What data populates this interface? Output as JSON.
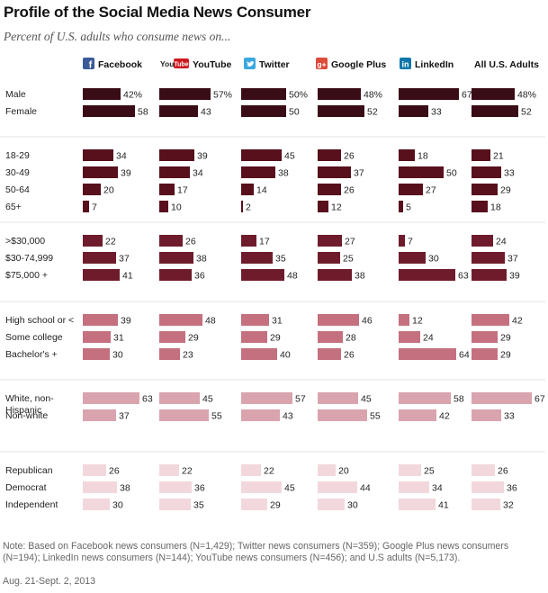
{
  "title": "Profile of the Social Media News Consumer",
  "subtitle": "Percent of U.S. adults who consume news on...",
  "note": "Note: Based on Facebook news consumers (N=1,429); Twitter news consumers (N=359); Google Plus news consumers (N=194); LinkedIn news consumers (N=144); YouTube news consumers (N=456); and U.S adults (N=5,173).",
  "date": "Aug. 21-Sept. 2, 2013",
  "logo_text": {
    "youtube_prefix": "You",
    "youtube_box": "Tube",
    "google": "g+",
    "linkedin": "in"
  },
  "colors": {
    "gender": "#3a0d16",
    "age": "#57101c",
    "income": "#6e1c2c",
    "education": "#c4707f",
    "race": "#d9a4ae",
    "party": "#f2d8dc",
    "facebook": "#3b5998",
    "youtube": "#cc181e",
    "twitter": "#3aa8e0",
    "google": "#dd4b39",
    "linkedin": "#0e76a8"
  },
  "chart_data": {
    "type": "bar",
    "orientation": "horizontal",
    "value_unit": "%",
    "columns": [
      {
        "key": "facebook",
        "name": "Facebook",
        "icon": "facebook-icon"
      },
      {
        "key": "youtube",
        "name": "YouTube",
        "icon": "youtube-icon"
      },
      {
        "key": "twitter",
        "name": "Twitter",
        "icon": "twitter-icon"
      },
      {
        "key": "google",
        "name": "Google Plus",
        "icon": "google-plus-icon"
      },
      {
        "key": "linkedin",
        "name": "LinkedIn",
        "icon": "linkedin-icon"
      },
      {
        "key": "all",
        "name": "All U.S. Adults",
        "icon": ""
      }
    ],
    "groups": [
      {
        "name": "gender",
        "color_key": "gender",
        "rows": [
          {
            "label": "Male",
            "values": [
              42,
              57,
              50,
              48,
              67,
              48
            ],
            "pct": true
          },
          {
            "label": "Female",
            "values": [
              58,
              43,
              50,
              52,
              33,
              52
            ]
          }
        ]
      },
      {
        "name": "age",
        "color_key": "age",
        "rows": [
          {
            "label": "18-29",
            "values": [
              34,
              39,
              45,
              26,
              18,
              21
            ]
          },
          {
            "label": "30-49",
            "values": [
              39,
              34,
              38,
              37,
              50,
              33
            ]
          },
          {
            "label": "50-64",
            "values": [
              20,
              17,
              14,
              26,
              27,
              29
            ]
          },
          {
            "label": "65+",
            "values": [
              7,
              10,
              2,
              12,
              5,
              18
            ]
          }
        ]
      },
      {
        "name": "income",
        "color_key": "income",
        "rows": [
          {
            "label": ">$30,000",
            "values": [
              22,
              26,
              17,
              27,
              7,
              24
            ]
          },
          {
            "label": "$30-74,999",
            "values": [
              37,
              38,
              35,
              25,
              30,
              37
            ]
          },
          {
            "label": "$75,000 +",
            "values": [
              41,
              36,
              48,
              38,
              63,
              39
            ]
          }
        ]
      },
      {
        "name": "education",
        "color_key": "education",
        "rows": [
          {
            "label": "High school or <",
            "values": [
              39,
              48,
              31,
              46,
              12,
              42
            ]
          },
          {
            "label": "Some college",
            "values": [
              31,
              29,
              29,
              28,
              24,
              29
            ]
          },
          {
            "label": "Bachelor's +",
            "values": [
              30,
              23,
              40,
              26,
              64,
              29
            ]
          }
        ]
      },
      {
        "name": "race",
        "color_key": "race",
        "rows": [
          {
            "label": "White, non-Hispanic",
            "label_lines": [
              "White, non-",
              "Hispanic"
            ],
            "values": [
              63,
              45,
              57,
              45,
              58,
              67
            ]
          },
          {
            "label": "Non-white",
            "values": [
              37,
              55,
              43,
              55,
              42,
              33
            ]
          }
        ]
      },
      {
        "name": "party",
        "color_key": "party",
        "rows": [
          {
            "label": "Republican",
            "values": [
              26,
              22,
              22,
              20,
              25,
              26
            ]
          },
          {
            "label": "Democrat",
            "values": [
              38,
              36,
              45,
              44,
              34,
              36
            ]
          },
          {
            "label": "Independent",
            "values": [
              30,
              35,
              29,
              30,
              41,
              32
            ]
          }
        ]
      }
    ]
  }
}
